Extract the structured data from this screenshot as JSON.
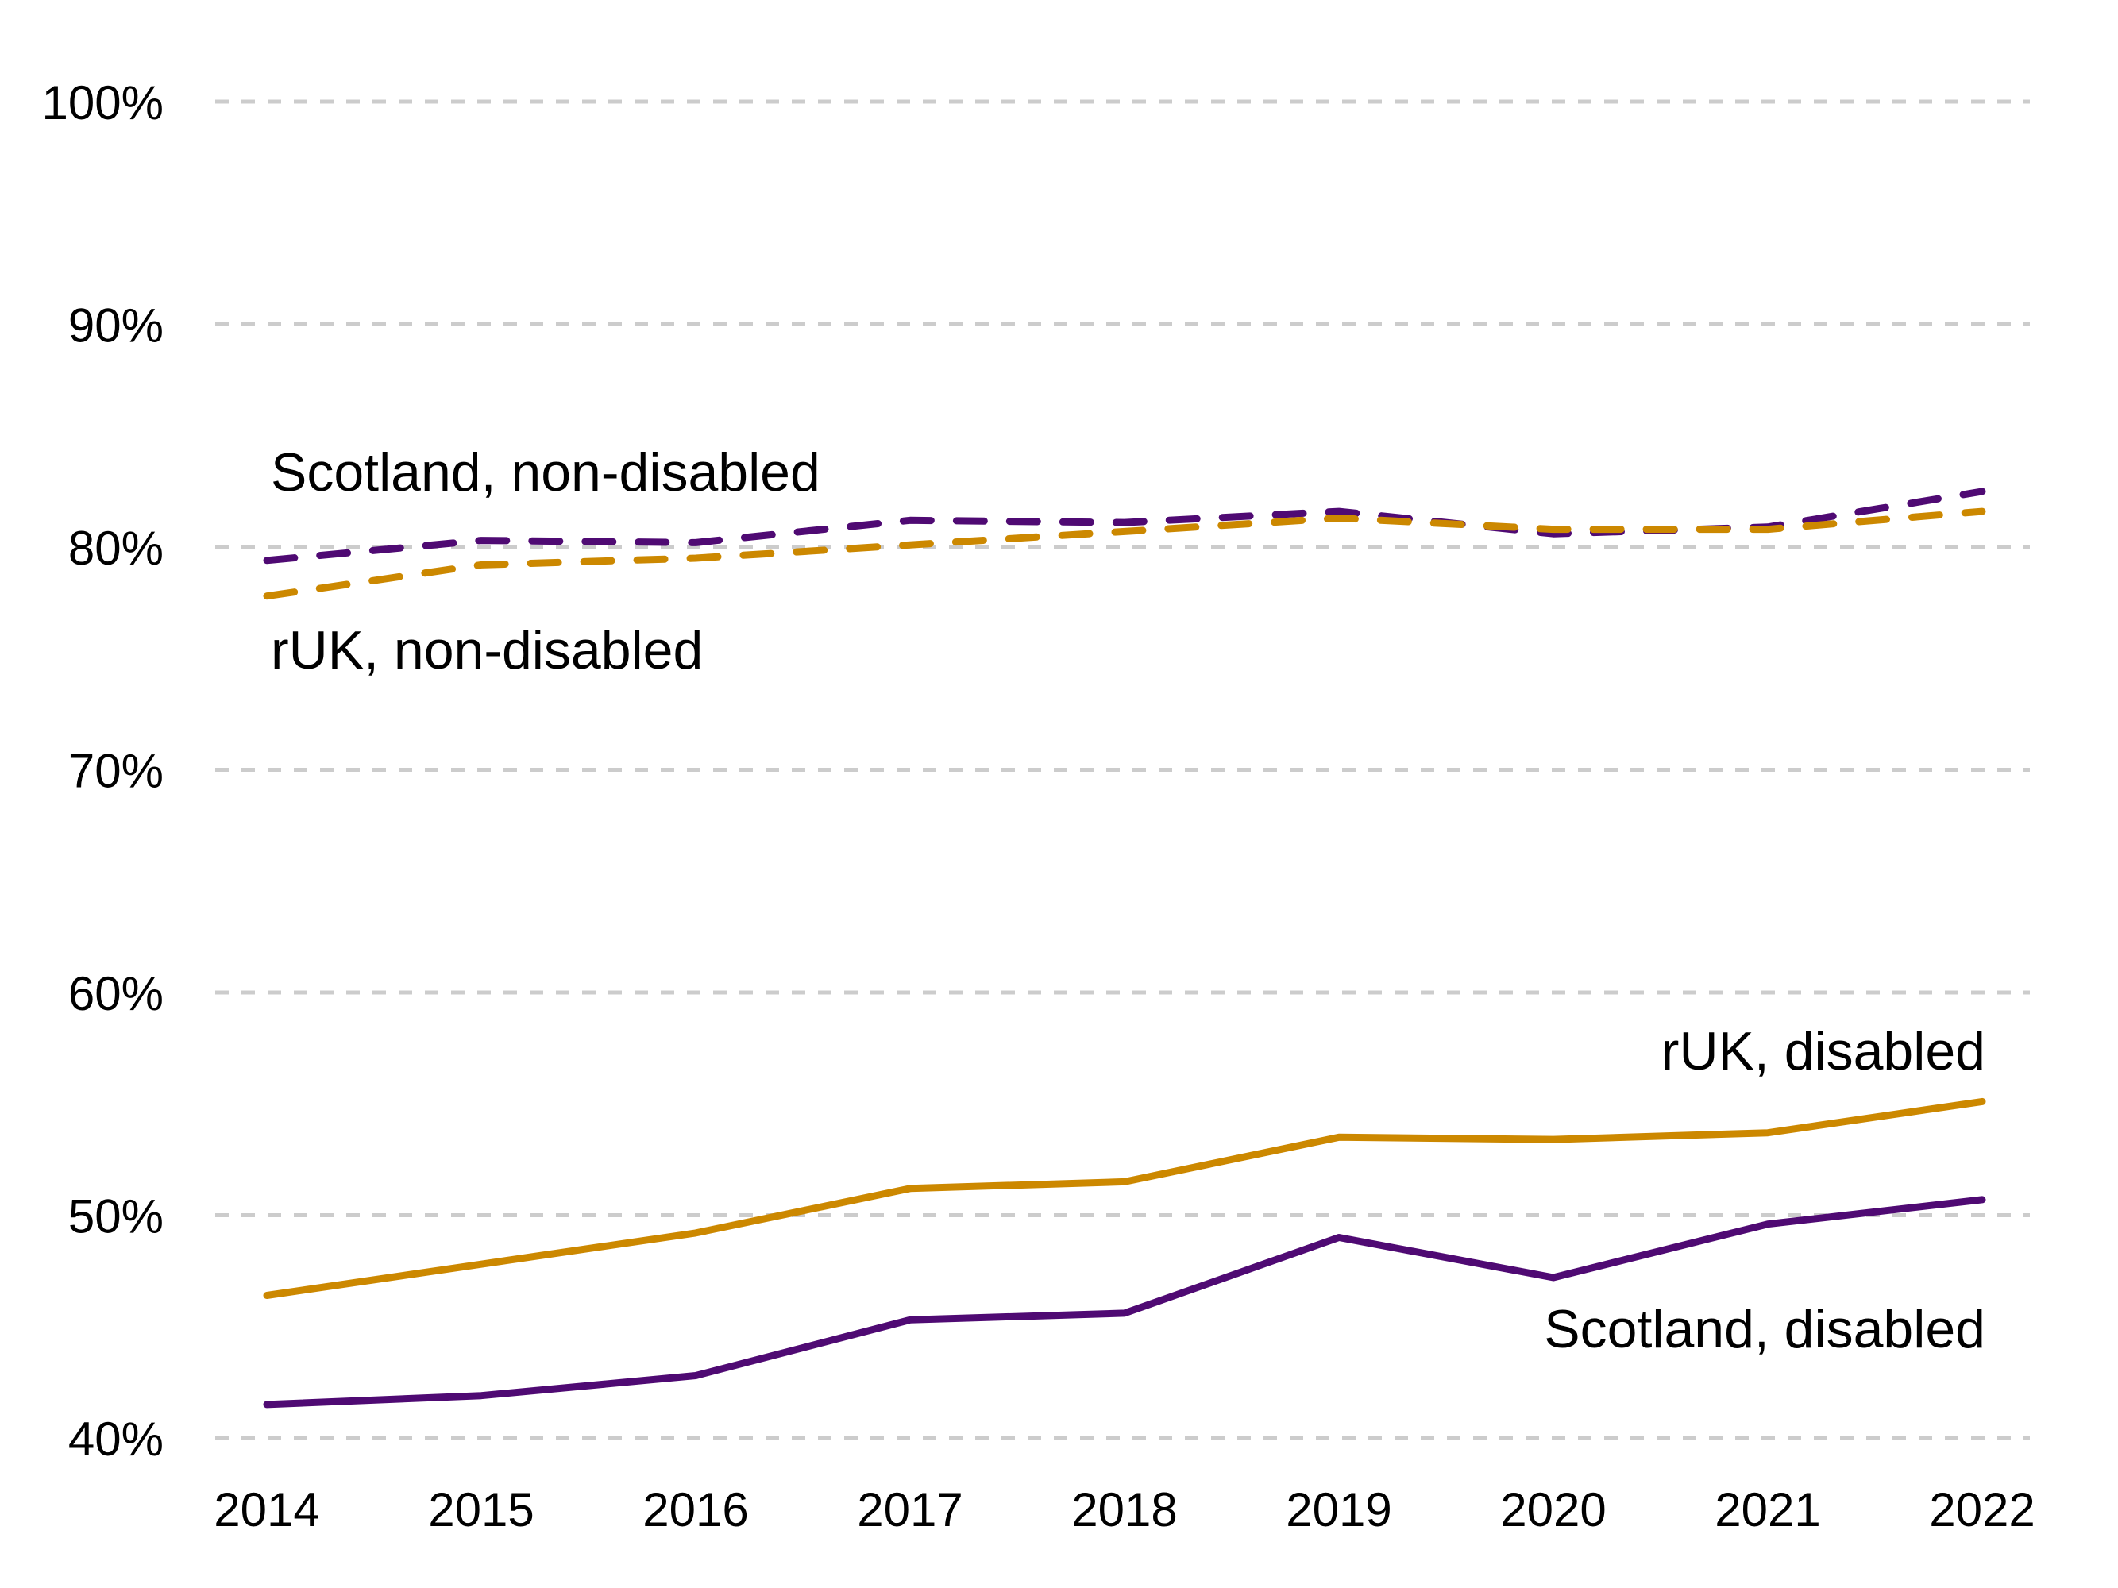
{
  "chart_data": {
    "type": "line",
    "title": "",
    "xlabel": "",
    "ylabel": "",
    "x": [
      2014,
      2015,
      2016,
      2017,
      2018,
      2019,
      2020,
      2021,
      2022
    ],
    "x_tick_labels": [
      "2014",
      "2015",
      "2016",
      "2017",
      "2018",
      "2019",
      "2020",
      "2021",
      "2022"
    ],
    "y_ticks": [
      40,
      50,
      60,
      70,
      80,
      90,
      100
    ],
    "y_tick_labels": [
      "40%",
      "50%",
      "60%",
      "70%",
      "80%",
      "90%",
      "100%"
    ],
    "ylim": [
      40,
      100
    ],
    "grid": "horizontal-dashed",
    "legend": "direct-labels",
    "series": [
      {
        "name": "Scotland, non-disabled",
        "label": "Scotland, non-disabled",
        "color": "#4f0a73",
        "style": "dashed",
        "values": [
          79.4,
          80.3,
          80.2,
          81.2,
          81.1,
          81.6,
          80.6,
          80.9,
          82.5
        ]
      },
      {
        "name": "rUK, non-disabled",
        "label": "rUK, non-disabled",
        "color": "#cc8800",
        "style": "dashed",
        "values": [
          77.8,
          79.2,
          79.5,
          80.1,
          80.7,
          81.3,
          80.8,
          80.8,
          81.6
        ]
      },
      {
        "name": "rUK, disabled",
        "label": "rUK, disabled",
        "color": "#cc8800",
        "style": "solid",
        "values": [
          46.4,
          47.8,
          49.2,
          51.2,
          51.5,
          53.5,
          53.4,
          53.7,
          55.1
        ]
      },
      {
        "name": "Scotland, disabled",
        "label": "Scotland, disabled",
        "color": "#4f0a73",
        "style": "solid",
        "values": [
          41.5,
          41.9,
          42.8,
          45.3,
          45.6,
          49.0,
          47.2,
          49.6,
          50.7
        ]
      }
    ]
  }
}
